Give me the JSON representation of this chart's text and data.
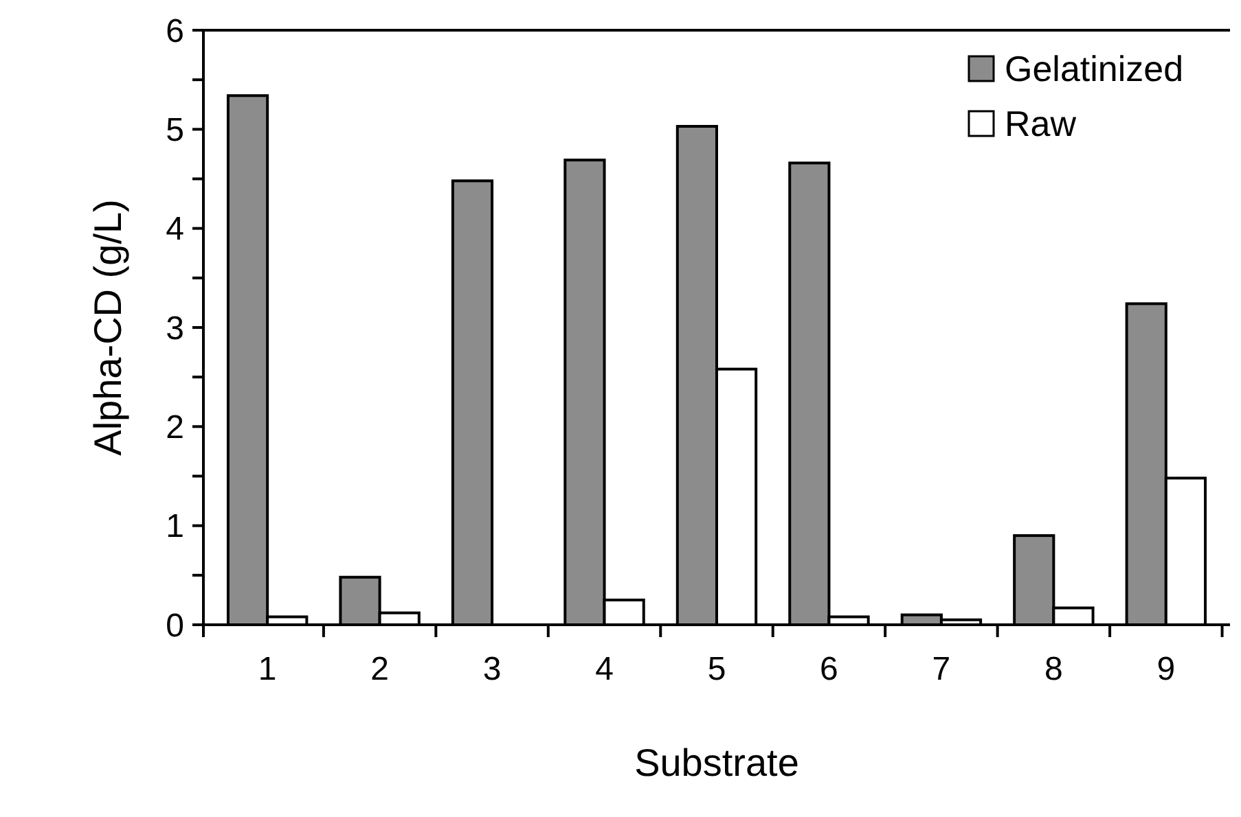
{
  "chart_data": {
    "type": "bar",
    "xlabel": "Substrate",
    "ylabel": "Alpha-CD (g/L)",
    "categories": [
      "1",
      "2",
      "3",
      "4",
      "5",
      "6",
      "7",
      "8",
      "9"
    ],
    "series": [
      {
        "name": "Gelatinized",
        "color": "#8c8c8c",
        "values": [
          5.34,
          0.48,
          4.48,
          4.69,
          5.03,
          4.66,
          0.1,
          0.9,
          3.24
        ]
      },
      {
        "name": "Raw",
        "color": "#ffffff",
        "values": [
          0.08,
          0.12,
          0,
          0.25,
          2.58,
          0.08,
          0.05,
          0.17,
          1.48
        ]
      }
    ],
    "ylim": [
      0,
      6
    ],
    "yticks": [
      0,
      {
        "value": 0.5,
        "label": null
      },
      1,
      {
        "value": 1.5,
        "label": null
      },
      2,
      {
        "value": 2.5,
        "label": null
      },
      3,
      {
        "value": 3.5,
        "label": null
      },
      4,
      {
        "value": 4.5,
        "label": null
      },
      5,
      {
        "value": 5.5,
        "label": null
      },
      6
    ],
    "grid": false,
    "legend": "top right"
  }
}
